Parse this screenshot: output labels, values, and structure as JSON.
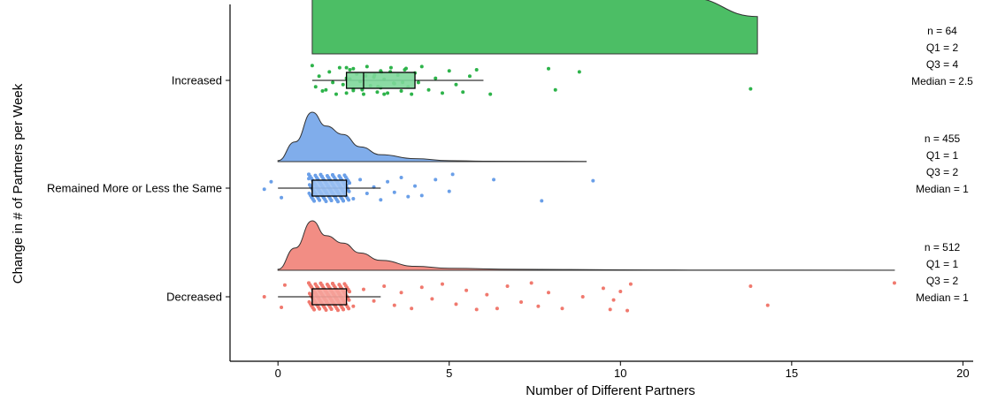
{
  "chart_data": {
    "type": "raincloud",
    "xlabel": "Number of Different Partners",
    "ylabel": "Change in # of Partners per Week",
    "xlim": [
      -1.4,
      20.3
    ],
    "x_ticks": [
      0,
      5,
      10,
      15,
      20
    ],
    "x_tick_labels": [
      "0",
      "5",
      "10",
      "15",
      "20"
    ],
    "grid": false,
    "legend": "none",
    "groups": [
      {
        "label": "Increased",
        "color": "#2DB34A",
        "box_fill": "#7ED79A",
        "n": 64,
        "q1": 2,
        "q3": 4,
        "median": 2.5,
        "whisker": [
          1,
          6
        ],
        "density": [
          [
            1,
            0.14
          ],
          [
            1.6,
            0.34
          ],
          [
            2.3,
            0.45
          ],
          [
            3,
            0.38
          ],
          [
            4,
            0.2
          ],
          [
            5,
            0.1
          ],
          [
            6,
            0.05
          ],
          [
            8,
            0.03
          ],
          [
            10,
            0.02
          ],
          [
            12,
            0.015
          ],
          [
            14,
            0.01
          ]
        ],
        "annotations": [
          "n = 64",
          "Q1 = 2",
          "Q3 = 4",
          "Median = 2.5"
        ],
        "points": [
          [
            1.0,
            -1.4
          ],
          [
            1.1,
            0.6
          ],
          [
            1.2,
            -0.4
          ],
          [
            1.3,
            1.0
          ],
          [
            1.5,
            -0.8
          ],
          [
            1.6,
            0.2
          ],
          [
            1.7,
            1.3
          ],
          [
            1.8,
            -1.2
          ],
          [
            1.9,
            0.4
          ],
          [
            2.0,
            -0.2
          ],
          [
            2.0,
            1.2
          ],
          [
            2.1,
            -1.0
          ],
          [
            2.2,
            0.8
          ],
          [
            2.3,
            -0.6
          ],
          [
            2.4,
            0.1
          ],
          [
            2.5,
            1.3
          ],
          [
            2.6,
            -1.3
          ],
          [
            2.7,
            0.5
          ],
          [
            2.8,
            -0.3
          ],
          [
            2.9,
            1.1
          ],
          [
            3.0,
            -0.9
          ],
          [
            3.0,
            0.7
          ],
          [
            3.1,
            -0.1
          ],
          [
            3.2,
            1.2
          ],
          [
            3.3,
            -1.2
          ],
          [
            3.4,
            0.3
          ],
          [
            3.5,
            -0.5
          ],
          [
            3.6,
            1.0
          ],
          [
            3.7,
            -1.0
          ],
          [
            3.8,
            0.6
          ],
          [
            3.9,
            1.3
          ],
          [
            4.0,
            -0.7
          ],
          [
            4.1,
            0.2
          ],
          [
            4.2,
            -1.3
          ],
          [
            4.4,
            0.9
          ],
          [
            4.6,
            -0.2
          ],
          [
            4.8,
            1.2
          ],
          [
            5.0,
            -0.9
          ],
          [
            5.2,
            0.4
          ],
          [
            5.4,
            1.1
          ],
          [
            5.6,
            -0.4
          ],
          [
            5.8,
            -1.0
          ],
          [
            6.2,
            1.3
          ],
          [
            7.9,
            -1.1
          ],
          [
            8.1,
            0.9
          ],
          [
            8.8,
            -0.8
          ],
          [
            13.8,
            0.8
          ],
          [
            1.4,
            0.9
          ],
          [
            2.2,
            -1.1
          ],
          [
            3.1,
            1.3
          ]
        ]
      },
      {
        "label": "Remained More or Less the Same",
        "color": "#6A9FE8",
        "box_fill": "#9BC0F2",
        "n": 455,
        "q1": 1,
        "q3": 2,
        "median": 1,
        "whisker": [
          0,
          3
        ],
        "density": [
          [
            0,
            0.02
          ],
          [
            0.5,
            0.4
          ],
          [
            1,
            1.0
          ],
          [
            1.4,
            0.72
          ],
          [
            1.9,
            0.55
          ],
          [
            2.4,
            0.3
          ],
          [
            3,
            0.14
          ],
          [
            4,
            0.06
          ],
          [
            5,
            0.02
          ],
          [
            6,
            0.01
          ],
          [
            9,
            0.005
          ]
        ],
        "annotations": [
          "n = 455",
          "Q1 = 1",
          "Q3 = 2",
          "Median = 1"
        ],
        "points": [
          [
            -0.4,
            0.1
          ],
          [
            -0.2,
            -0.6
          ],
          [
            0.1,
            0.9
          ],
          [
            0.9,
            -0.9
          ],
          [
            1.3,
            0.7
          ],
          [
            2.0,
            -0.3
          ],
          [
            2.2,
            1.0
          ],
          [
            2.4,
            -0.8
          ],
          [
            2.6,
            0.5
          ],
          [
            2.8,
            -0.1
          ],
          [
            3.0,
            1.1
          ],
          [
            3.2,
            -0.6
          ],
          [
            3.4,
            0.4
          ],
          [
            3.6,
            -1.0
          ],
          [
            3.8,
            0.8
          ],
          [
            4.0,
            -0.2
          ],
          [
            4.2,
            0.7
          ],
          [
            4.6,
            -0.8
          ],
          [
            5.0,
            0.3
          ],
          [
            5.1,
            -1.3
          ],
          [
            6.3,
            -0.8
          ],
          [
            7.7,
            1.2
          ],
          [
            9.2,
            -0.7
          ]
        ]
      },
      {
        "label": "Decreased",
        "color": "#F0796E",
        "box_fill": "#F5A39B",
        "n": 512,
        "q1": 1,
        "q3": 2,
        "median": 1,
        "whisker": [
          0,
          3
        ],
        "density": [
          [
            0,
            0.02
          ],
          [
            0.5,
            0.45
          ],
          [
            1,
            1.0
          ],
          [
            1.4,
            0.7
          ],
          [
            1.9,
            0.55
          ],
          [
            2.4,
            0.35
          ],
          [
            3,
            0.2
          ],
          [
            4,
            0.08
          ],
          [
            5,
            0.04
          ],
          [
            7,
            0.02
          ],
          [
            10,
            0.01
          ],
          [
            12,
            0.005
          ],
          [
            18,
            0.002
          ]
        ],
        "annotations": [
          "n = 512",
          "Q1 = 1",
          "Q3 = 2",
          "Median = 1"
        ],
        "points": [
          [
            -0.4,
            0.0
          ],
          [
            0.1,
            1.0
          ],
          [
            0.2,
            -1.1
          ],
          [
            2.2,
            0.9
          ],
          [
            2.5,
            -0.7
          ],
          [
            2.8,
            0.4
          ],
          [
            3.1,
            -1.0
          ],
          [
            3.4,
            0.8
          ],
          [
            3.6,
            -0.4
          ],
          [
            3.9,
            1.1
          ],
          [
            4.2,
            -0.9
          ],
          [
            4.5,
            0.2
          ],
          [
            4.8,
            -1.2
          ],
          [
            5.2,
            0.7
          ],
          [
            5.5,
            -0.6
          ],
          [
            5.8,
            1.2
          ],
          [
            6.1,
            -0.2
          ],
          [
            6.4,
            1.1
          ],
          [
            6.7,
            -1.0
          ],
          [
            7.1,
            0.5
          ],
          [
            7.4,
            -1.3
          ],
          [
            7.6,
            0.9
          ],
          [
            7.9,
            -0.4
          ],
          [
            8.3,
            1.1
          ],
          [
            8.9,
            0.0
          ],
          [
            9.5,
            -0.8
          ],
          [
            9.7,
            1.2
          ],
          [
            9.8,
            0.3
          ],
          [
            10.0,
            -0.5
          ],
          [
            10.2,
            1.3
          ],
          [
            10.3,
            -1.2
          ],
          [
            13.8,
            -1.0
          ],
          [
            14.3,
            0.8
          ],
          [
            18.0,
            -1.3
          ]
        ]
      }
    ]
  }
}
